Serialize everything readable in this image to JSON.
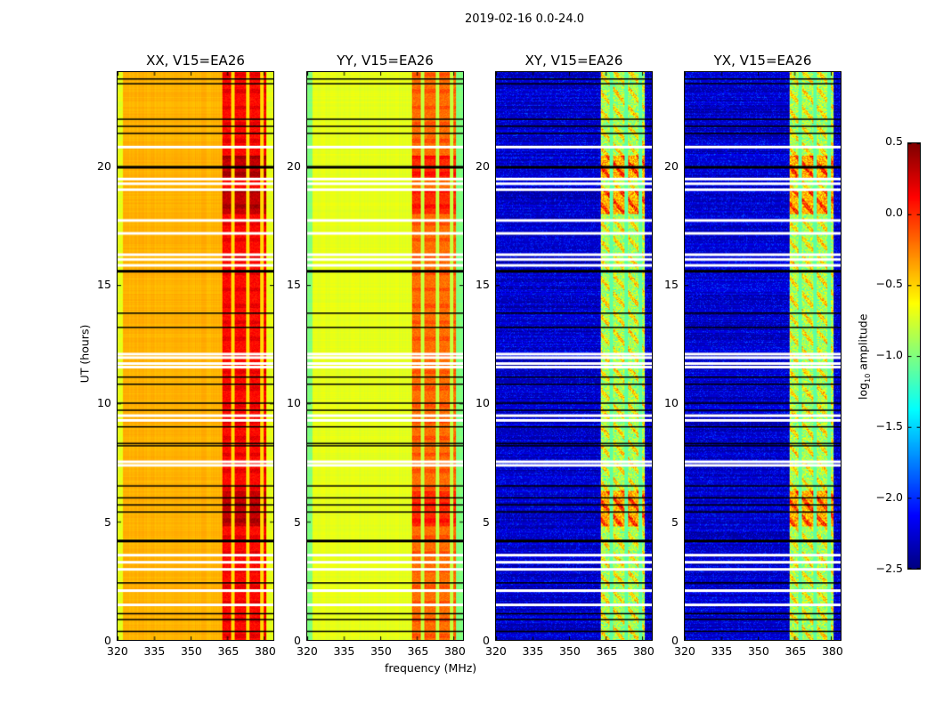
{
  "chart_data": {
    "type": "heatmap",
    "title": "2019-02-16 0.0-24.0",
    "xlabel": "frequency (MHz)",
    "ylabel": "UT (hours)",
    "xlim": [
      320,
      384
    ],
    "ylim": [
      0,
      24
    ],
    "xticks": [
      "320",
      "335",
      "350",
      "365",
      "380"
    ],
    "yticks": [
      "0",
      "5",
      "10",
      "15",
      "20"
    ],
    "panels": [
      {
        "title": "XX, V15=EA26",
        "baseline_log10_amp": -0.4,
        "band_log10_amp": 0.1
      },
      {
        "title": "YY, V15=EA26",
        "baseline_log10_amp": -0.7,
        "band_log10_amp": -0.2
      },
      {
        "title": "XY, V15=EA26",
        "baseline_log10_amp": -2.3,
        "band_log10_amp": -0.9
      },
      {
        "title": "YX, V15=EA26",
        "baseline_log10_amp": -2.3,
        "band_log10_amp": -0.9
      }
    ],
    "bright_band_mhz": [
      363,
      381
    ],
    "flagged_black_ut": [
      23.7,
      23.5,
      22.0,
      21.7,
      21.4,
      20.0,
      15.6,
      13.8,
      13.2,
      11.1,
      10.8,
      10.0,
      9.7,
      9.0,
      8.3,
      8.2,
      6.5,
      6.0,
      5.7,
      5.4,
      4.2,
      2.4,
      1.1,
      0.85,
      0.35
    ],
    "flagged_white_ut": [
      20.85,
      19.5,
      19.3,
      19.05,
      17.75,
      17.2,
      16.3,
      16.1,
      15.85,
      12.1,
      11.95,
      11.7,
      11.55,
      9.5,
      9.3,
      7.55,
      7.4,
      3.6,
      3.3,
      3.0,
      2.1,
      1.5
    ],
    "colorbar": {
      "label": "log10 amplitude",
      "range": [
        -2.5,
        0.5
      ],
      "ticks": [
        "0.5",
        "0.0",
        "−0.5",
        "−1.0",
        "−1.5",
        "−2.0",
        "−2.5"
      ],
      "colormap": "jet"
    }
  }
}
